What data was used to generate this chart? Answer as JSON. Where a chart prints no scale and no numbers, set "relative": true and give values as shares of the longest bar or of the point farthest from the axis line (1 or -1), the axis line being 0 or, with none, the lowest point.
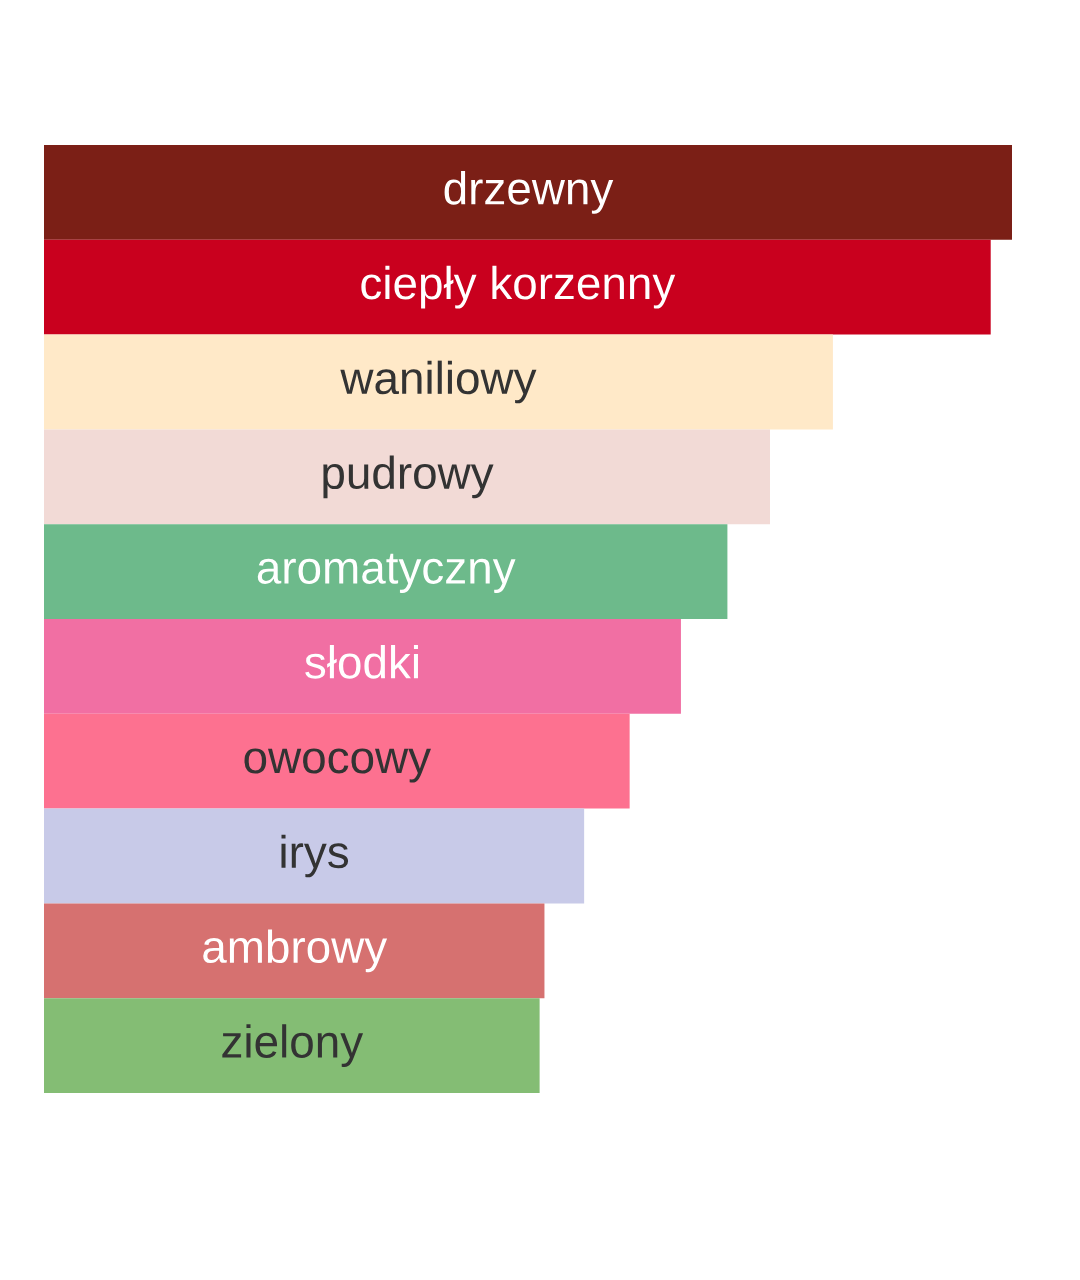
{
  "chart_data": {
    "type": "bar",
    "orientation": "horizontal",
    "relative": true,
    "categories": [
      "drzewny",
      "ciepły korzenny",
      "waniliowy",
      "pudrowy",
      "aromatyczny",
      "słodki",
      "owocowy",
      "irys",
      "ambrowy",
      "zielony"
    ],
    "values": [
      1,
      0.978,
      0.815,
      0.75,
      0.706,
      0.658,
      0.605,
      0.558,
      0.517,
      0.512
    ],
    "colors": [
      "#7b1f16",
      "#c9001e",
      "#ffe9c8",
      "#f2dad6",
      "#6dba8b",
      "#f16fa3",
      "#fd7190",
      "#c8cae8",
      "#d67170",
      "#84bd74"
    ]
  }
}
